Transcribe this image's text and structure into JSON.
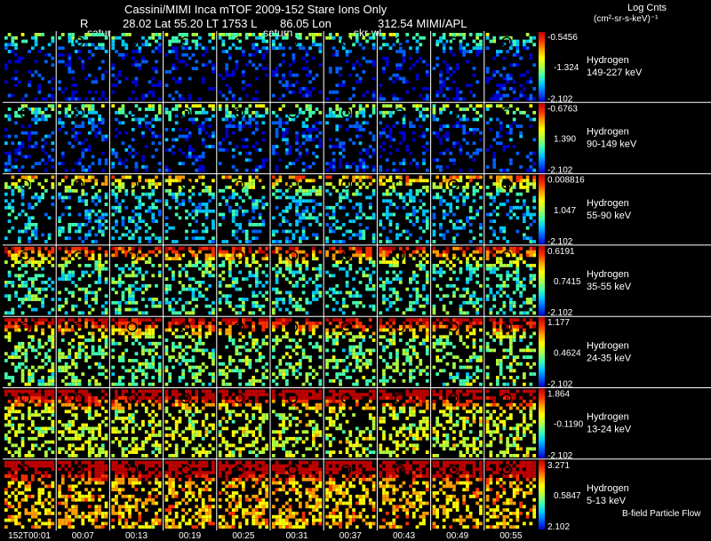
{
  "header": {
    "title": "Cassini/MIMI Inca mTOF  2009-152   Stare    Ions Only",
    "r_label": "R",
    "lat_text": "28.02 Lat 55.20 LT 1753 L",
    "lon_text": "86.05 Lon",
    "apl_text": "312.54  MIMI/APL",
    "body_labels": [
      "satur",
      "saturn",
      "skr-wl"
    ]
  },
  "legend": {
    "log_counts_title": "Log Cnts",
    "units": "(cm²-sr-s-keV)⁻¹",
    "bfield_label": "B-field Particle Flow"
  },
  "colors": {
    "background": "#000000",
    "divider": "#ffffff",
    "colormap": [
      "#0000d0",
      "#0060ff",
      "#00c8ff",
      "#40ffb0",
      "#b0ff40",
      "#ffff00",
      "#ffa000",
      "#ff3000",
      "#c00000"
    ]
  },
  "chart_data": {
    "type": "heatmap",
    "title": "Cassini/MIMI Inca mTOF 2009-152 Stare Ions Only",
    "time_labels": [
      "152T00:01",
      "00:07",
      "00:13",
      "00:19",
      "00:25",
      "00:31",
      "00:37",
      "00:43",
      "00:49",
      "00:55"
    ],
    "channels": [
      {
        "species": "Hydrogen",
        "energy": "149-227 keV",
        "colorbar_max": "-0.5456",
        "colorbar_mid": "-1.324",
        "colorbar_min": "-2.102",
        "mean_level": 0.08
      },
      {
        "species": "Hydrogen",
        "energy": "90-149 keV",
        "colorbar_max": "-0.6763",
        "colorbar_mid": "1.390",
        "colorbar_min": "-2.102",
        "mean_level": 0.12
      },
      {
        "species": "Hydrogen",
        "energy": "55-90 keV",
        "colorbar_max": "0.008816",
        "colorbar_mid": "1.047",
        "colorbar_min": "-2.102",
        "mean_level": 0.28
      },
      {
        "species": "Hydrogen",
        "energy": "35-55 keV",
        "colorbar_max": "0.6191",
        "colorbar_mid": "0.7415",
        "colorbar_min": "-2.102",
        "mean_level": 0.38
      },
      {
        "species": "Hydrogen",
        "energy": "24-35 keV",
        "colorbar_max": "1.177",
        "colorbar_mid": "0.4624",
        "colorbar_min": "-2.102",
        "mean_level": 0.45
      },
      {
        "species": "Hydrogen",
        "energy": "13-24 keV",
        "colorbar_max": "1.864",
        "colorbar_mid": "-0.1190",
        "colorbar_min": "-2.102",
        "mean_level": 0.55
      },
      {
        "species": "Hydrogen",
        "energy": "5-13 keV",
        "colorbar_max": "3.271",
        "colorbar_mid": "0.5847",
        "colorbar_min": "2.102",
        "mean_level": 0.68
      }
    ]
  }
}
